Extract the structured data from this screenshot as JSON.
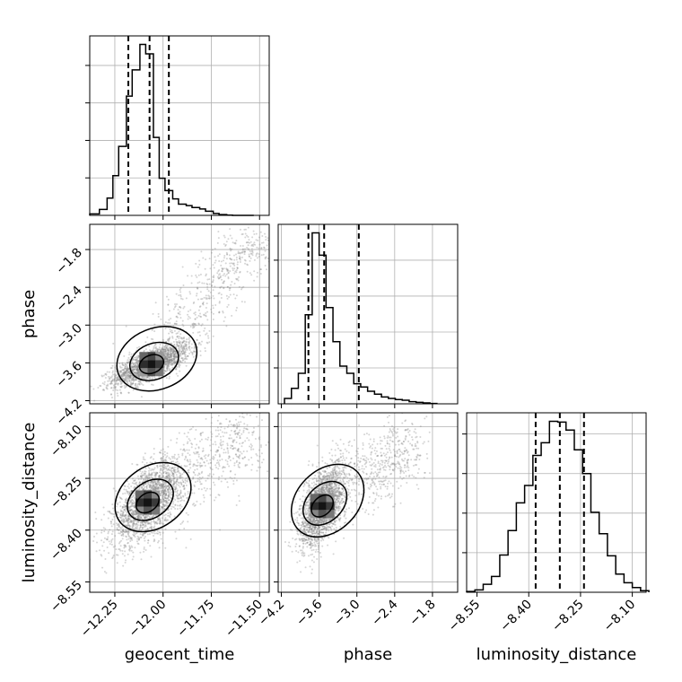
{
  "chart_data": {
    "type": "corner",
    "title": "",
    "grid": true,
    "parameters": [
      {
        "name": "geocent_time",
        "label": "geocent_time",
        "range": [
          -12.38,
          -11.45
        ],
        "ticks": [
          -12.25,
          -12.0,
          -11.75,
          -11.5
        ],
        "tick_labels": [
          "−12.25",
          "−12.00",
          "−11.75",
          "−11.50"
        ],
        "quantiles": [
          -12.18,
          -12.07,
          -11.97
        ],
        "hist_bins": [
          -12.38,
          -12.33,
          -12.29,
          -12.26,
          -12.23,
          -12.19,
          -12.16,
          -12.12,
          -12.09,
          -12.05,
          -12.02,
          -11.99,
          -11.95,
          -11.92,
          -11.88,
          -11.85,
          -11.81,
          -11.78,
          -11.74,
          -11.71,
          -11.67,
          -11.64,
          -11.61,
          -11.57,
          -11.53
        ],
        "hist_counts": [
          40,
          160,
          460,
          1060,
          1840,
          3180,
          3880,
          4560,
          4310,
          2080,
          990,
          660,
          440,
          300,
          260,
          210,
          170,
          110,
          50,
          20,
          5,
          0,
          0,
          0
        ]
      },
      {
        "name": "phase",
        "label": "phase",
        "range": [
          -4.25,
          -1.4
        ],
        "ticks": [
          -4.2,
          -3.6,
          -3.0,
          -2.4,
          -1.8
        ],
        "tick_labels": [
          "−4.2",
          "−3.6",
          "−3.0",
          "−2.4",
          "−1.8"
        ],
        "quantiles": [
          -3.77,
          -3.52,
          -2.97
        ],
        "hist_bins": [
          -4.15,
          -4.04,
          -3.93,
          -3.82,
          -3.71,
          -3.6,
          -3.49,
          -3.38,
          -3.27,
          -3.16,
          -3.05,
          -2.94,
          -2.83,
          -2.72,
          -2.61,
          -2.5,
          -2.39,
          -2.28,
          -2.17,
          -2.06,
          -1.95,
          -1.84,
          -1.73
        ],
        "hist_counts": [
          150,
          430,
          850,
          2480,
          4760,
          4140,
          2680,
          1730,
          1050,
          850,
          560,
          470,
          350,
          270,
          190,
          150,
          120,
          100,
          60,
          40,
          25,
          10
        ]
      },
      {
        "name": "luminosity_distance",
        "label": "luminosity_distance",
        "range": [
          -8.58,
          -8.06
        ],
        "ticks": [
          -8.55,
          -8.4,
          -8.25,
          -8.1
        ],
        "tick_labels": [
          "−8.55",
          "−8.40",
          "−8.25",
          "−8.10"
        ],
        "quantiles": [
          -8.38,
          -8.31,
          -8.24
        ],
        "hist_bins": [
          -8.58,
          -8.556,
          -8.532,
          -8.508,
          -8.484,
          -8.46,
          -8.436,
          -8.412,
          -8.388,
          -8.364,
          -8.34,
          -8.316,
          -8.292,
          -8.268,
          -8.244,
          -8.22,
          -8.196,
          -8.172,
          -8.148,
          -8.124,
          -8.1,
          -8.076,
          -8.052
        ],
        "hist_counts": [
          10,
          30,
          100,
          200,
          470,
          780,
          1130,
          1350,
          1730,
          1890,
          2160,
          2150,
          2050,
          1800,
          1500,
          1010,
          740,
          460,
          230,
          120,
          60,
          20
        ]
      }
    ],
    "pairs": [
      {
        "x": "geocent_time",
        "y": "phase",
        "center": [
          -12.06,
          -3.62
        ],
        "sigma": [
          0.1,
          0.17
        ],
        "corr": 0.72,
        "tail_to": [
          -11.5,
          -1.55
        ]
      },
      {
        "x": "geocent_time",
        "y": "luminosity_distance",
        "center": [
          -12.08,
          -8.32
        ],
        "sigma": [
          0.09,
          0.06
        ],
        "corr": 0.6,
        "tail_to": [
          -11.55,
          -8.12
        ]
      },
      {
        "x": "phase",
        "y": "luminosity_distance",
        "center": [
          -3.55,
          -8.33
        ],
        "sigma": [
          0.18,
          0.06
        ],
        "corr": 0.55,
        "tail_to": [
          -2.1,
          -8.15
        ]
      }
    ]
  }
}
